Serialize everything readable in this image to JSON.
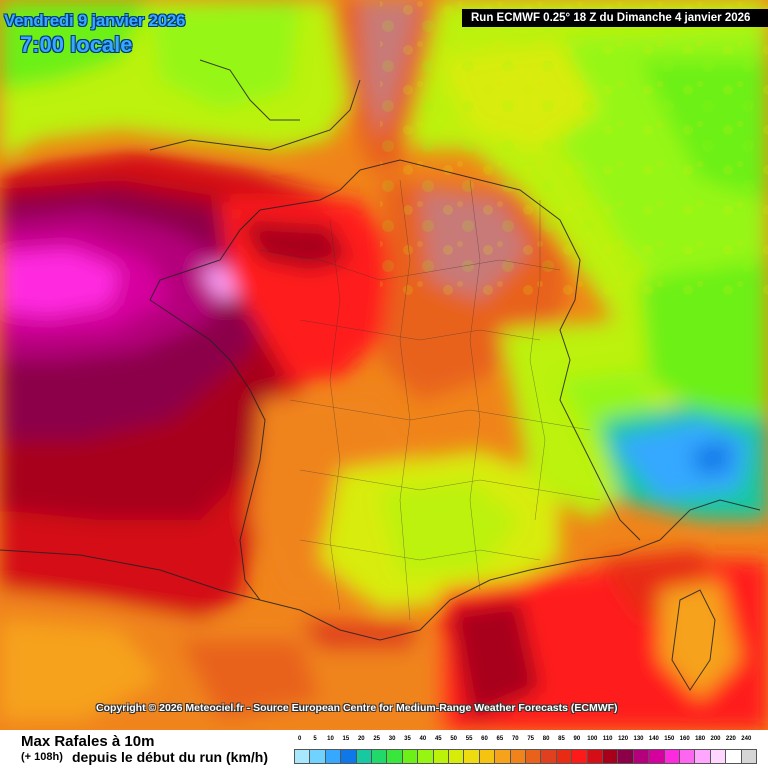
{
  "header": {
    "date": "Vendredi 9 janvier 2026",
    "time": "7:00 locale",
    "run": "Run ECMWF 0.25° 18 Z du Dimanche 4 janvier 2026"
  },
  "copyright": "Copyright © 2026 Meteociel.fr - Source European Centre for Medium-Range Weather Forecasts (ECMWF)",
  "legend": {
    "title": "Max Rafales à 10m",
    "offset": "(+ 108h)",
    "subtitle": "depuis le début du run (km/h)",
    "ticks": [
      "0",
      "5",
      "10",
      "15",
      "20",
      "25",
      "30",
      "35",
      "40",
      "45",
      "50",
      "55",
      "60",
      "65",
      "70",
      "75",
      "80",
      "85",
      "90",
      "100",
      "110",
      "120",
      "130",
      "140",
      "150",
      "160",
      "180",
      "200",
      "220",
      "240"
    ],
    "colors": [
      "#a8e8ff",
      "#6fd2ff",
      "#36a8ff",
      "#0f78e8",
      "#17c8a0",
      "#21d86a",
      "#39e63b",
      "#6cf018",
      "#96f612",
      "#bcf20a",
      "#d8ec0a",
      "#eedb10",
      "#f5c410",
      "#f6a21a",
      "#f0841a",
      "#e8621c",
      "#e0401e",
      "#e82b12",
      "#ff1a1a",
      "#d40d16",
      "#a8001a",
      "#8c0048",
      "#b4007a",
      "#d6009e",
      "#ff2ae0",
      "#ff66f0",
      "#ffa6ff",
      "#ffd6ff",
      "#ffffff",
      "#d6d6d6"
    ]
  },
  "map_colors": {
    "green": "#6cf018",
    "lime": "#bcf20a",
    "yellow": "#eedb10",
    "orange": "#f0841a",
    "salmon": "#e8621c",
    "red": "#ff1a1a",
    "darkred": "#a8001a",
    "purple": "#8c0048",
    "magenta": "#ff2ae0",
    "cyan": "#17c8a0",
    "blue": "#36a8ff"
  }
}
